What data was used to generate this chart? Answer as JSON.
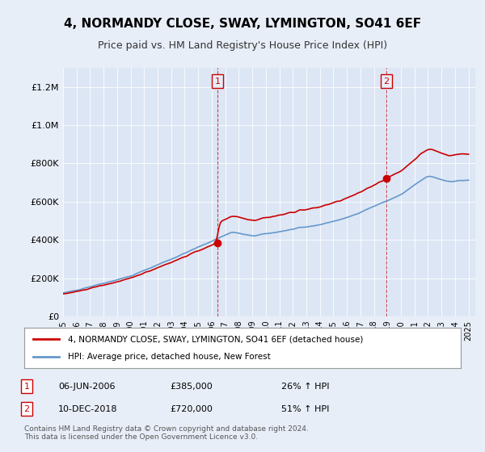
{
  "title": "4, NORMANDY CLOSE, SWAY, LYMINGTON, SO41 6EF",
  "subtitle": "Price paid vs. HM Land Registry's House Price Index (HPI)",
  "legend_property": "4, NORMANDY CLOSE, SWAY, LYMINGTON, SO41 6EF (detached house)",
  "legend_hpi": "HPI: Average price, detached house, New Forest",
  "annotation1_label": "1",
  "annotation1_date": "06-JUN-2006",
  "annotation1_price": "£385,000",
  "annotation1_hpi": "26% ↑ HPI",
  "annotation2_label": "2",
  "annotation2_date": "10-DEC-2018",
  "annotation2_price": "£720,000",
  "annotation2_hpi": "51% ↑ HPI",
  "footer": "Contains HM Land Registry data © Crown copyright and database right 2024.\nThis data is licensed under the Open Government Licence v3.0.",
  "property_color": "#cc0000",
  "hpi_color": "#6699cc",
  "sale1_x": 2006.42,
  "sale1_y": 385000,
  "sale2_x": 2018.92,
  "sale2_y": 720000,
  "vline1_x": 2006.42,
  "vline2_x": 2018.92,
  "ylim": [
    0,
    1300000
  ],
  "xlim": [
    1995,
    2025.5
  ],
  "background_color": "#e8eef8",
  "plot_bg": "#dce6f5"
}
